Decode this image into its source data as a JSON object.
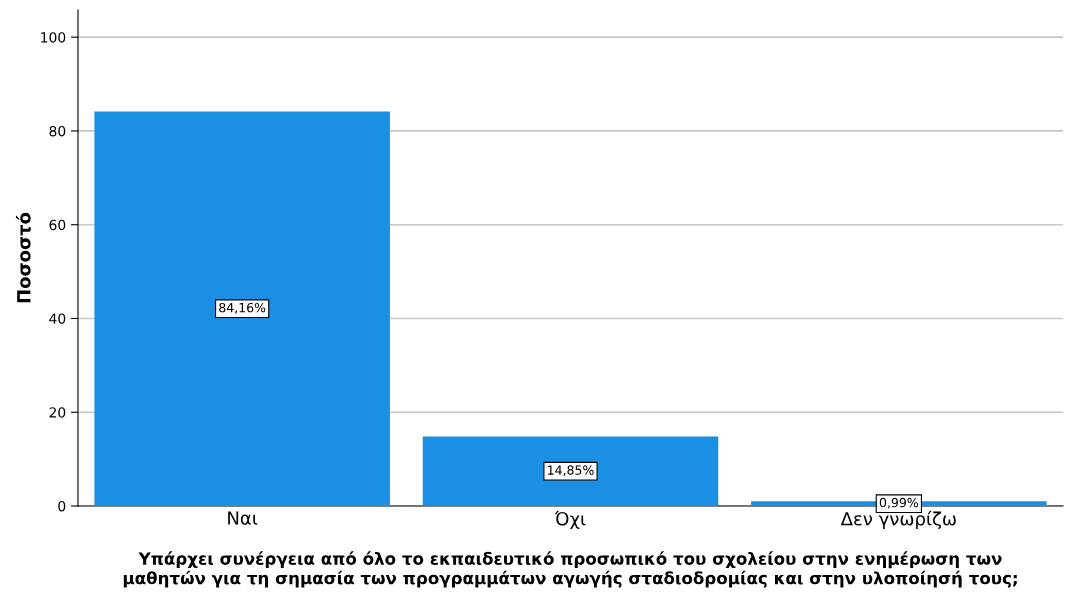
{
  "chart_data": {
    "type": "bar",
    "categories": [
      "Ναι",
      "Όχι",
      "Δεν γνωρίζω"
    ],
    "values": [
      84.16,
      14.85,
      0.99
    ],
    "value_labels": [
      "84,16%",
      "14,85%",
      "0,99%"
    ],
    "color": "#1a8fe3",
    "xlabel": "Υπάρχει συνέργεια από όλο το εκπαιδευτικό προσωπικό του σχολείου στην ενημέρωση των\nμαθητών για τη σημασία των προγραμμάτων αγωγής σταδιοδρομίας και στην υλοποίησή τους;",
    "ylabel": "Ποσοστό",
    "ylim": [
      0,
      105.8
    ],
    "yticks": [
      0,
      20,
      40,
      60,
      80,
      100
    ],
    "grid": "y"
  }
}
